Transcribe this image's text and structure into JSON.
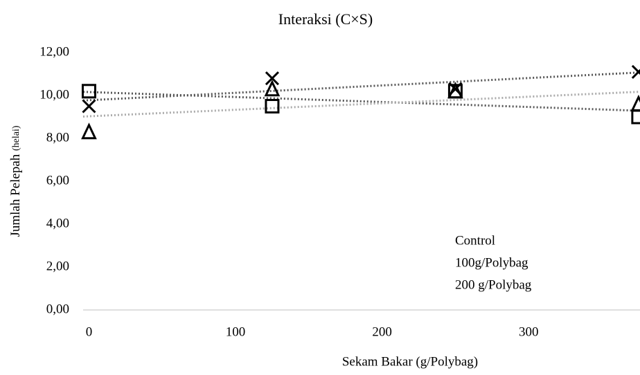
{
  "chart_data": {
    "type": "scatter",
    "title": "Interaksi (C×S)",
    "x_label": "Sekam Bakar (g/Polybag)",
    "y_label": "Jumlah Pelepah",
    "y_label_unit": "(helai)",
    "x": [
      0,
      125,
      250,
      375
    ],
    "series": [
      {
        "name": "Control",
        "color": "#000000",
        "marker": "square",
        "trend_color": "#555555",
        "values": [
          10.2,
          9.5,
          10.2,
          9.0
        ]
      },
      {
        "name": "100g/Polybag",
        "color": "#000000",
        "marker": "triangle",
        "trend_color": "#aaaaaa",
        "values": [
          8.3,
          10.3,
          10.2,
          9.6
        ]
      },
      {
        "name": "200 g/Polybag",
        "color": "#000000",
        "marker": "x",
        "trend_color": "#555555",
        "values": [
          9.5,
          10.8,
          10.3,
          11.1
        ]
      }
    ],
    "xlim": [
      -4,
      376
    ],
    "xticks": [
      0,
      100,
      200,
      300
    ],
    "ylim": [
      0,
      12
    ],
    "yticks": [
      {
        "value": 0,
        "label": "0,00"
      },
      {
        "value": 2,
        "label": "2,00"
      },
      {
        "value": 4,
        "label": "4,00"
      },
      {
        "value": 6,
        "label": "6,00"
      },
      {
        "value": 8,
        "label": "8,00"
      },
      {
        "value": 10,
        "label": "10,00"
      },
      {
        "value": 12,
        "label": "12,00"
      }
    ],
    "trendline": true,
    "grid": false
  }
}
